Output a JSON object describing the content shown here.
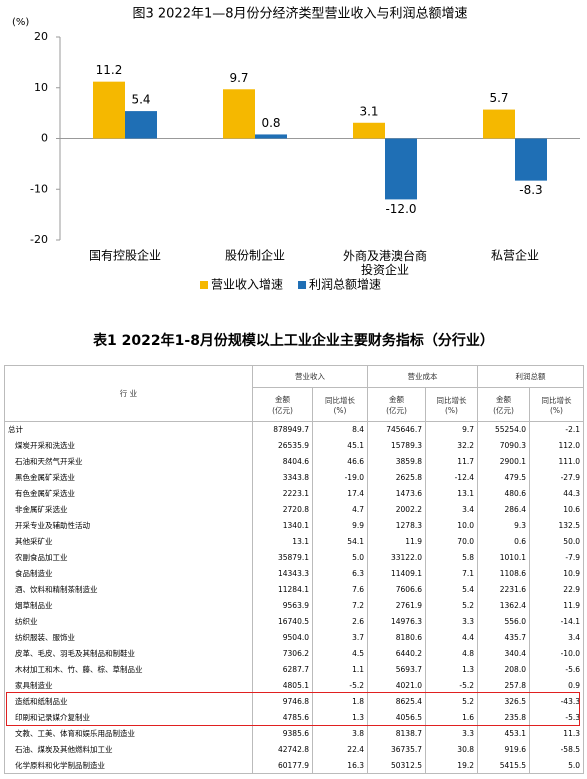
{
  "chart_data": {
    "type": "bar",
    "title": "图3 2022年1—8月份分经济类型营业收入与利润总额增速",
    "y_label": "(%)",
    "categories": [
      "国有控股企业",
      "股份制企业",
      "外商及港澳台商投资企业",
      "私营企业"
    ],
    "series": [
      {
        "name": "营业收入增速",
        "color": "#f5b800",
        "values": [
          11.2,
          9.7,
          3.1,
          5.7
        ]
      },
      {
        "name": "利润总额增速",
        "color": "#1f6fb5",
        "values": [
          5.4,
          0.8,
          -12.0,
          -8.3
        ],
        "value_labels": [
          "5.4",
          "0.8",
          "-12.0",
          "-8.3"
        ]
      }
    ],
    "ylim": [
      -20,
      20
    ],
    "yticks": [
      -20,
      -10,
      0,
      10,
      20
    ],
    "grid": false,
    "legend": "bottom"
  },
  "table": {
    "title": "表1 2022年1-8月份规模以上工业企业主要财务指标（分行业）",
    "industry_header": "行 业",
    "groups": [
      "营业收入",
      "营业成本",
      "利润总额"
    ],
    "sub_headers": [
      [
        "金额",
        "(亿元)"
      ],
      [
        "同比增长",
        "(%)"
      ],
      [
        "金额",
        "(亿元)"
      ],
      [
        "同比增长",
        "(%)"
      ],
      [
        "金额",
        "(亿元)"
      ],
      [
        "同比增长",
        "(%)"
      ]
    ],
    "rows": [
      [
        "总计",
        "878949.7",
        "8.4",
        "745646.7",
        "9.7",
        "55254.0",
        "-2.1"
      ],
      [
        "煤炭开采和洗选业",
        "26535.9",
        "45.1",
        "15789.3",
        "32.2",
        "7090.3",
        "112.0"
      ],
      [
        "石油和天然气开采业",
        "8404.6",
        "46.6",
        "3859.8",
        "11.7",
        "2900.1",
        "111.0"
      ],
      [
        "黑色金属矿采选业",
        "3343.8",
        "-19.0",
        "2625.8",
        "-12.4",
        "479.5",
        "-27.9"
      ],
      [
        "有色金属矿采选业",
        "2223.1",
        "17.4",
        "1473.6",
        "13.1",
        "480.6",
        "44.3"
      ],
      [
        "非金属矿采选业",
        "2720.8",
        "4.7",
        "2002.2",
        "3.4",
        "286.4",
        "10.6"
      ],
      [
        "开采专业及辅助性活动",
        "1340.1",
        "9.9",
        "1278.3",
        "10.0",
        "9.3",
        "132.5"
      ],
      [
        "其他采矿业",
        "13.1",
        "54.1",
        "11.9",
        "70.0",
        "0.6",
        "50.0"
      ],
      [
        "农副食品加工业",
        "35879.1",
        "5.0",
        "33122.0",
        "5.8",
        "1010.1",
        "-7.9"
      ],
      [
        "食品制造业",
        "14343.3",
        "6.3",
        "11409.1",
        "7.1",
        "1108.6",
        "10.9"
      ],
      [
        "酒、饮料和精制茶制造业",
        "11284.1",
        "7.6",
        "7606.6",
        "5.4",
        "2231.6",
        "22.9"
      ],
      [
        "烟草制品业",
        "9563.9",
        "7.2",
        "2761.9",
        "5.2",
        "1362.4",
        "11.9"
      ],
      [
        "纺织业",
        "16740.5",
        "2.6",
        "14976.3",
        "3.3",
        "556.0",
        "-14.1"
      ],
      [
        "纺织服装、服饰业",
        "9504.0",
        "3.7",
        "8180.6",
        "4.4",
        "435.7",
        "3.4"
      ],
      [
        "皮革、毛皮、羽毛及其制品和制鞋业",
        "7306.2",
        "4.5",
        "6440.2",
        "4.8",
        "340.4",
        "-10.0"
      ],
      [
        "木材加工和木、竹、藤、棕、草制品业",
        "6287.7",
        "1.1",
        "5693.7",
        "1.3",
        "208.0",
        "-5.6"
      ],
      [
        "家具制造业",
        "4805.1",
        "-5.2",
        "4021.0",
        "-5.2",
        "257.8",
        "0.9"
      ],
      [
        "造纸和纸制品业",
        "9746.8",
        "1.8",
        "8625.4",
        "5.2",
        "326.5",
        "-43.3"
      ],
      [
        "印刷和记录媒介复制业",
        "4785.6",
        "1.3",
        "4056.5",
        "1.6",
        "235.8",
        "-5.3"
      ],
      [
        "文教、工美、体育和娱乐用品制造业",
        "9385.6",
        "3.8",
        "8138.7",
        "3.3",
        "453.1",
        "11.3"
      ],
      [
        "石油、煤炭及其他燃料加工业",
        "42742.8",
        "22.4",
        "36735.7",
        "30.8",
        "919.6",
        "-58.5"
      ],
      [
        "化学原料和化学制品制造业",
        "60177.9",
        "16.3",
        "50312.5",
        "19.2",
        "5415.5",
        "5.0"
      ]
    ]
  }
}
